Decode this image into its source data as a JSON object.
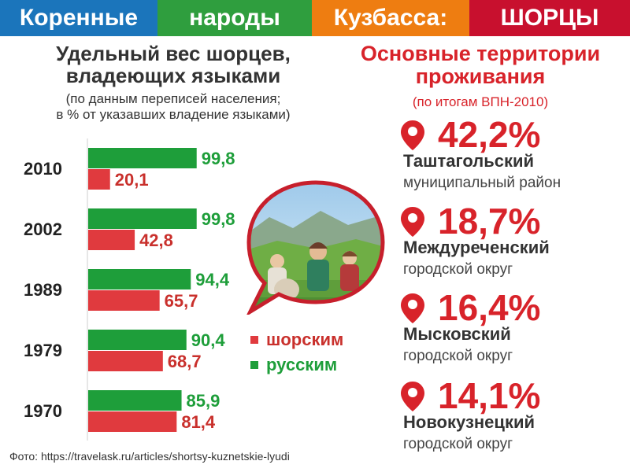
{
  "header": {
    "segments": [
      {
        "label": "Коренные",
        "color": "#1b75bb"
      },
      {
        "label": "народы",
        "color": "#2f9e3e"
      },
      {
        "label": "Кузбасса:",
        "color": "#ee7d11"
      },
      {
        "label": "ШОРЦЫ",
        "color": "#c8102e"
      }
    ]
  },
  "left": {
    "title_line1": "Удельный вес шорцев,",
    "title_line2": "владеющих языками",
    "subtitle_line1": "(по данным переписей населения;",
    "subtitle_line2": "в % от указавших владение языками)"
  },
  "legend": {
    "shor_label": "шорским",
    "russian_label": "русским"
  },
  "colors": {
    "shor": "#e03a3e",
    "russian": "#1e9e3a",
    "shor_text": "#c9302c",
    "russian_text": "#1e9e3a",
    "accent_red": "#d8232a"
  },
  "chart_data": {
    "type": "bar",
    "orientation": "horizontal",
    "categories": [
      "2010",
      "2002",
      "1989",
      "1979",
      "1970"
    ],
    "series": [
      {
        "name": "русским",
        "values": [
          99.8,
          99.8,
          94.4,
          90.4,
          85.9
        ],
        "labels": [
          "99,8",
          "99,8",
          "94,4",
          "90,4",
          "85,9"
        ]
      },
      {
        "name": "шорским",
        "values": [
          20.1,
          42.8,
          65.7,
          68.7,
          81.4
        ],
        "labels": [
          "20,1",
          "42,8",
          "65,7",
          "68,7",
          "81,4"
        ]
      }
    ],
    "xlim": [
      0,
      100
    ],
    "grid": false
  },
  "right": {
    "title_line1": "Основные территории",
    "title_line2": "проживания",
    "subtitle": "(по итогам ВПН-2010)",
    "territories": [
      {
        "percent": "42,2%",
        "name": "Таштагольский",
        "desc": "муниципальный район"
      },
      {
        "percent": "18,7%",
        "name": "Междуреченский",
        "desc": "городской округ"
      },
      {
        "percent": "16,4%",
        "name": "Мысковский",
        "desc": "городской округ"
      },
      {
        "percent": "14,1%",
        "name": "Новокузнецкий",
        "desc": "городской округ"
      }
    ]
  },
  "credit": "Фото: https://travelask.ru/articles/shortsy-kuznetskie-lyudi"
}
